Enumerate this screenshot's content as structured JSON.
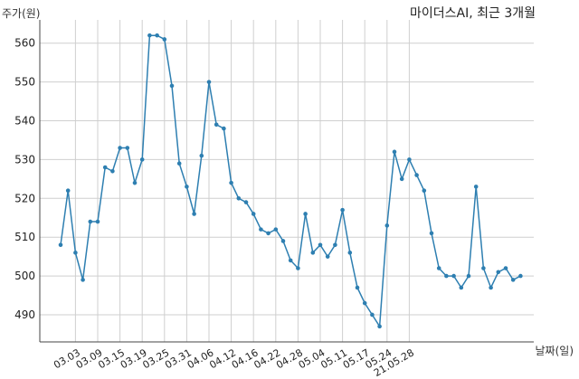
{
  "chart_data": {
    "type": "line",
    "title": "마이더스AI, 최근 3개월",
    "xlabel": "날짜(일)",
    "ylabel": "주가(원)",
    "ylim": [
      483,
      566
    ],
    "yticks": [
      490,
      500,
      510,
      520,
      530,
      540,
      550,
      560
    ],
    "xtick_labels": [
      "03.03",
      "03.09",
      "03.15",
      "03.19",
      "03.25",
      "03.31",
      "04.06",
      "04.12",
      "04.16",
      "04.22",
      "04.28",
      "05.04",
      "05.11",
      "05.17",
      "05.24",
      "21.05.28"
    ],
    "xtick_index": [
      2,
      5,
      8,
      11,
      14,
      17,
      20,
      23,
      26,
      29,
      32,
      35,
      38,
      41,
      44,
      47
    ],
    "grid": true,
    "color": "#2e7fb1",
    "series": [
      {
        "values": [
          508,
          522,
          506,
          499,
          514,
          514,
          528,
          527,
          533,
          533,
          524,
          530,
          562,
          562,
          561,
          549,
          529,
          523,
          516,
          531,
          550,
          539,
          538,
          524,
          520,
          519,
          516,
          512,
          511,
          512,
          509,
          504,
          502,
          516,
          506,
          508,
          505,
          508,
          517,
          506,
          497,
          493,
          490,
          487,
          513,
          532,
          525,
          530,
          526,
          522,
          511,
          502,
          500,
          500,
          497,
          500,
          523,
          502,
          497,
          501,
          502,
          499,
          500
        ]
      }
    ]
  }
}
